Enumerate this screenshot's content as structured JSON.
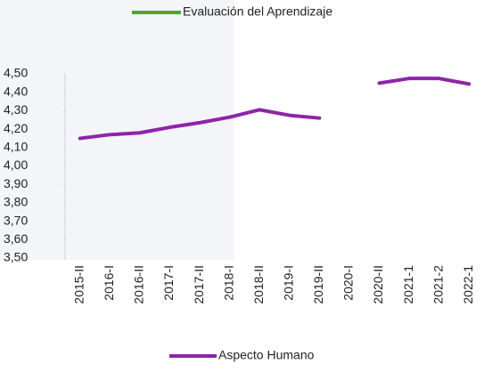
{
  "chart_data": {
    "type": "line",
    "categories": [
      "2015-II",
      "2016-I",
      "2016-II",
      "2017-I",
      "2017-II",
      "2018-I",
      "2018-II",
      "2019-I",
      "2019-II",
      "2020-I",
      "2020-II",
      "2021-1",
      "2021-2",
      "2022-1"
    ],
    "series": [
      {
        "name": "Evaluación del Aprendizaje",
        "color": "#4ea72e",
        "values": [
          null,
          null,
          null,
          null,
          null,
          null,
          null,
          null,
          null,
          null,
          null,
          null,
          null,
          null
        ]
      },
      {
        "name": "Aspecto Humano",
        "color": "#8e24aa",
        "values": [
          4.15,
          4.17,
          4.18,
          4.21,
          4.235,
          4.265,
          4.305,
          4.275,
          4.26,
          null,
          4.45,
          4.475,
          4.475,
          4.445
        ]
      }
    ],
    "ylim": [
      3.5,
      4.5
    ],
    "yticks": [
      {
        "value": 3.5,
        "label": "3,50"
      },
      {
        "value": 3.6,
        "label": "3,60"
      },
      {
        "value": 3.7,
        "label": "3,70"
      },
      {
        "value": 3.8,
        "label": "3,80"
      },
      {
        "value": 3.9,
        "label": "3,90"
      },
      {
        "value": 4.0,
        "label": "4,00"
      },
      {
        "value": 4.1,
        "label": "4,10"
      },
      {
        "value": 4.2,
        "label": "4,20"
      },
      {
        "value": 4.3,
        "label": "4,30"
      },
      {
        "value": 4.4,
        "label": "4,40"
      },
      {
        "value": 4.5,
        "label": "4,50"
      }
    ]
  }
}
